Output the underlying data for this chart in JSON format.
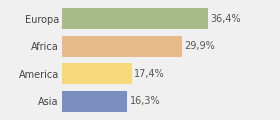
{
  "categories": [
    "Europa",
    "Africa",
    "America",
    "Asia"
  ],
  "values": [
    36.4,
    29.9,
    17.4,
    16.3
  ],
  "labels": [
    "36,4%",
    "29,9%",
    "17,4%",
    "16,3%"
  ],
  "bar_colors": [
    "#a8bc8a",
    "#e8b98a",
    "#f5d97a",
    "#7a8fc0"
  ],
  "background_color": "#f0f0f0",
  "xlim": [
    0,
    46
  ],
  "bar_height": 0.78,
  "label_fontsize": 7.0,
  "tick_fontsize": 7.0
}
